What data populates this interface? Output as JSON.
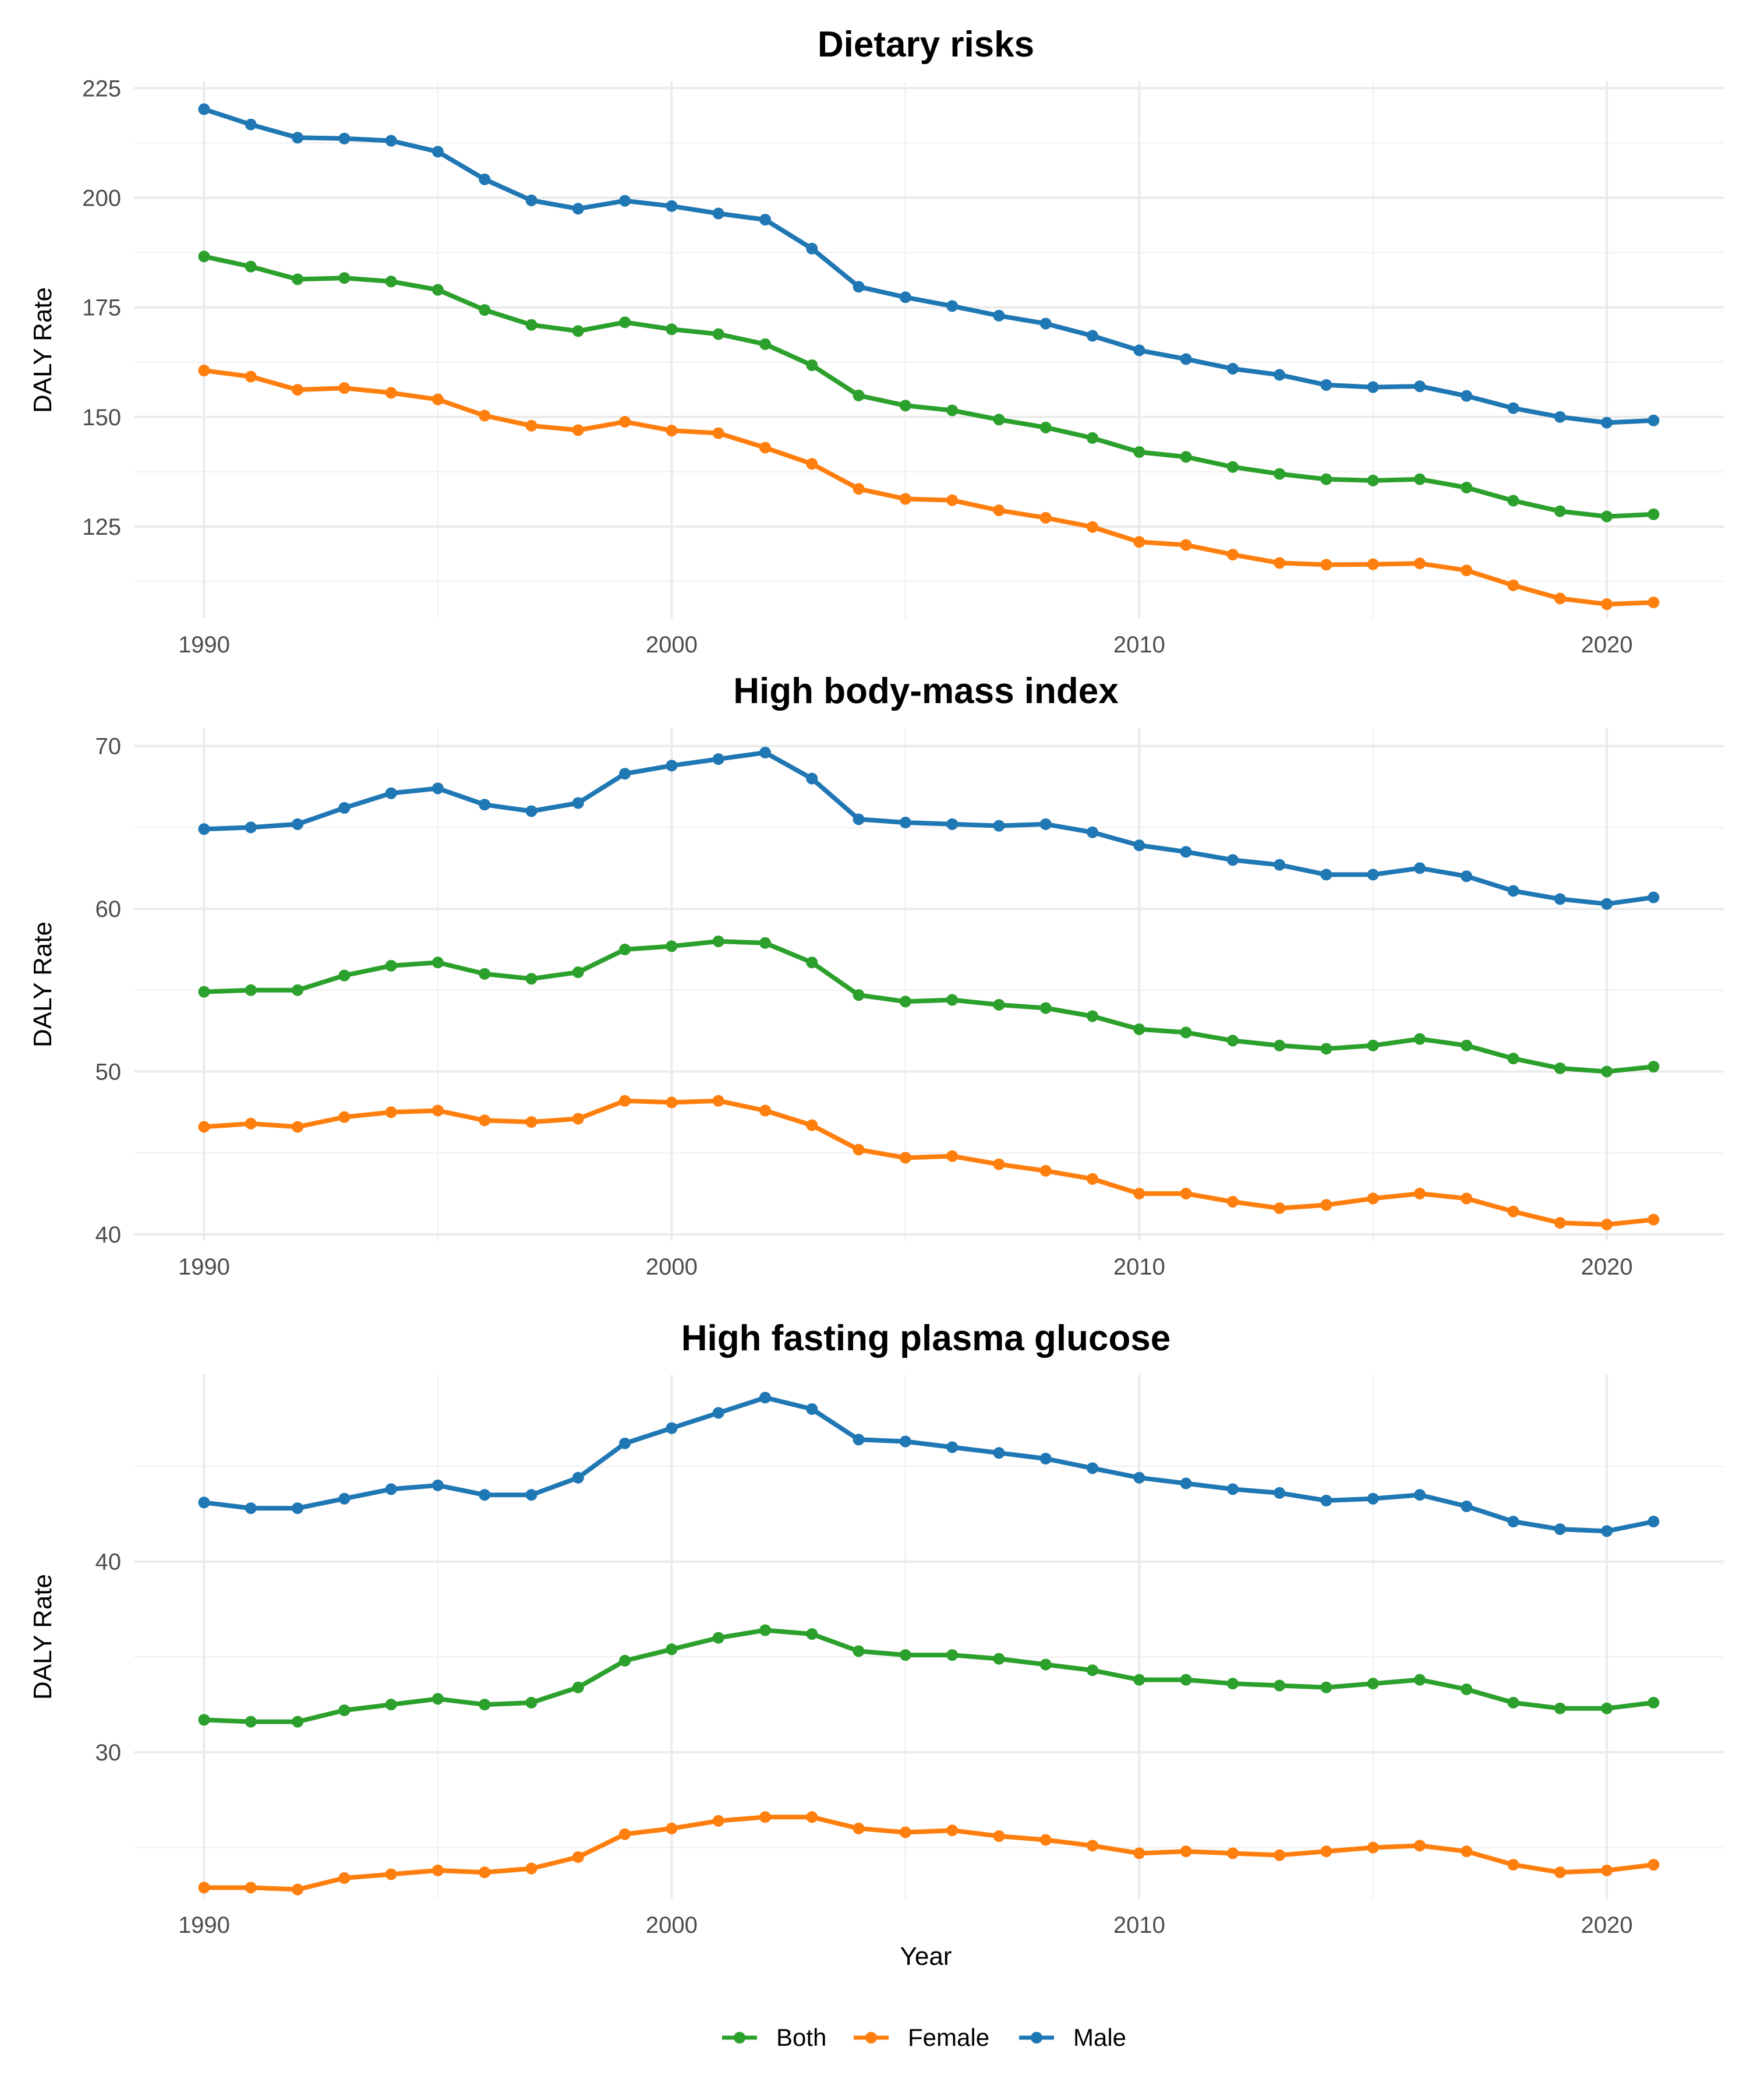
{
  "chart_data": [
    {
      "type": "line",
      "title": "Dietary risks",
      "xlabel": "",
      "ylabel": "DALY Rate",
      "xlim": [
        1988.5,
        2022.5
      ],
      "ylim": [
        104,
        226.5
      ],
      "xticks": [
        1990,
        2000,
        2010,
        2020
      ],
      "yticks": [
        125,
        150,
        175,
        200,
        225
      ],
      "x": [
        1990,
        1991,
        1992,
        1993,
        1994,
        1995,
        1996,
        1997,
        1998,
        1999,
        2000,
        2001,
        2002,
        2003,
        2004,
        2005,
        2006,
        2007,
        2008,
        2009,
        2010,
        2011,
        2012,
        2013,
        2014,
        2015,
        2016,
        2017,
        2018,
        2019,
        2020,
        2021
      ],
      "series": [
        {
          "name": "Male",
          "color": "#1f77b4",
          "values": [
            220.2,
            216.7,
            213.7,
            213.5,
            213.0,
            210.5,
            204.2,
            199.4,
            197.5,
            199.3,
            198.1,
            196.4,
            195.0,
            188.4,
            179.7,
            177.3,
            175.3,
            173.1,
            171.3,
            168.5,
            165.2,
            163.2,
            161.0,
            159.6,
            157.3,
            156.8,
            157.0,
            154.8,
            152.0,
            150.0,
            148.7,
            149.2
          ]
        },
        {
          "name": "Both",
          "color": "#2ca02c",
          "values": [
            186.6,
            184.3,
            181.4,
            181.7,
            180.9,
            179.0,
            174.4,
            171.0,
            169.6,
            171.6,
            170.0,
            168.9,
            166.6,
            161.8,
            154.9,
            152.6,
            151.5,
            149.4,
            147.6,
            145.2,
            142.0,
            140.9,
            138.6,
            137.0,
            135.8,
            135.5,
            135.8,
            133.9,
            130.9,
            128.5,
            127.3,
            127.8
          ]
        },
        {
          "name": "Female",
          "color": "#ff7f0e",
          "values": [
            160.6,
            159.2,
            156.2,
            156.6,
            155.5,
            154.0,
            150.3,
            148.0,
            147.0,
            148.9,
            146.9,
            146.3,
            143.0,
            139.3,
            133.6,
            131.3,
            131.0,
            128.7,
            127.0,
            124.9,
            121.5,
            120.8,
            118.6,
            116.7,
            116.3,
            116.4,
            116.6,
            115.0,
            111.6,
            108.6,
            107.3,
            107.7
          ]
        }
      ]
    },
    {
      "type": "line",
      "title": "High body-mass index",
      "xlabel": "",
      "ylabel": "DALY Rate",
      "xlim": [
        1988.5,
        2022.5
      ],
      "ylim": [
        39.6,
        71.1
      ],
      "xticks": [
        1990,
        2000,
        2010,
        2020
      ],
      "yticks": [
        40,
        50,
        60,
        70
      ],
      "x": [
        1990,
        1991,
        1992,
        1993,
        1994,
        1995,
        1996,
        1997,
        1998,
        1999,
        2000,
        2001,
        2002,
        2003,
        2004,
        2005,
        2006,
        2007,
        2008,
        2009,
        2010,
        2011,
        2012,
        2013,
        2014,
        2015,
        2016,
        2017,
        2018,
        2019,
        2020,
        2021
      ],
      "series": [
        {
          "name": "Male",
          "color": "#1f77b4",
          "values": [
            64.9,
            65.0,
            65.2,
            66.2,
            67.1,
            67.4,
            66.4,
            66.0,
            66.5,
            68.3,
            68.8,
            69.2,
            69.6,
            68.0,
            65.5,
            65.3,
            65.2,
            65.1,
            65.2,
            64.7,
            63.9,
            63.5,
            63.0,
            62.7,
            62.1,
            62.1,
            62.5,
            62.0,
            61.1,
            60.6,
            60.3,
            60.7
          ]
        },
        {
          "name": "Both",
          "color": "#2ca02c",
          "values": [
            54.9,
            55.0,
            55.0,
            55.9,
            56.5,
            56.7,
            56.0,
            55.7,
            56.1,
            57.5,
            57.7,
            58.0,
            57.9,
            56.7,
            54.7,
            54.3,
            54.4,
            54.1,
            53.9,
            53.4,
            52.6,
            52.4,
            51.9,
            51.6,
            51.4,
            51.6,
            52.0,
            51.6,
            50.8,
            50.2,
            50.0,
            50.3
          ]
        },
        {
          "name": "Female",
          "color": "#ff7f0e",
          "values": [
            46.6,
            46.8,
            46.6,
            47.2,
            47.5,
            47.6,
            47.0,
            46.9,
            47.1,
            48.2,
            48.1,
            48.2,
            47.6,
            46.7,
            45.2,
            44.7,
            44.8,
            44.3,
            43.9,
            43.4,
            42.5,
            42.5,
            42.0,
            41.6,
            41.8,
            42.2,
            42.5,
            42.2,
            41.4,
            40.7,
            40.6,
            40.9
          ]
        }
      ]
    },
    {
      "type": "line",
      "title": "High fasting plasma glucose",
      "xlabel": "Year",
      "ylabel": "DALY Rate",
      "xlim": [
        1988.5,
        2022.5
      ],
      "ylim": [
        22.3,
        49.8
      ],
      "xticks": [
        1990,
        2000,
        2010,
        2020
      ],
      "yticks": [
        30,
        40
      ],
      "x": [
        1990,
        1991,
        1992,
        1993,
        1994,
        1995,
        1996,
        1997,
        1998,
        1999,
        2000,
        2001,
        2002,
        2003,
        2004,
        2005,
        2006,
        2007,
        2008,
        2009,
        2010,
        2011,
        2012,
        2013,
        2014,
        2015,
        2016,
        2017,
        2018,
        2019,
        2020,
        2021
      ],
      "series": [
        {
          "name": "Male",
          "color": "#1f77b4",
          "values": [
            43.1,
            42.8,
            42.8,
            43.3,
            43.8,
            44.0,
            43.5,
            43.5,
            44.4,
            46.2,
            47.0,
            47.8,
            48.6,
            48.0,
            46.4,
            46.3,
            46.0,
            45.7,
            45.4,
            44.9,
            44.4,
            44.1,
            43.8,
            43.6,
            43.2,
            43.3,
            43.5,
            42.9,
            42.1,
            41.7,
            41.6,
            42.1
          ]
        },
        {
          "name": "Both",
          "color": "#2ca02c",
          "values": [
            31.7,
            31.6,
            31.6,
            32.2,
            32.5,
            32.8,
            32.5,
            32.6,
            33.4,
            34.8,
            35.4,
            36.0,
            36.4,
            36.2,
            35.3,
            35.1,
            35.1,
            34.9,
            34.6,
            34.3,
            33.8,
            33.8,
            33.6,
            33.5,
            33.4,
            33.6,
            33.8,
            33.3,
            32.6,
            32.3,
            32.3,
            32.6
          ]
        },
        {
          "name": "Female",
          "color": "#ff7f0e",
          "values": [
            22.9,
            22.9,
            22.8,
            23.4,
            23.6,
            23.8,
            23.7,
            23.9,
            24.5,
            25.7,
            26.0,
            26.4,
            26.6,
            26.6,
            26.0,
            25.8,
            25.9,
            25.6,
            25.4,
            25.1,
            24.7,
            24.8,
            24.7,
            24.6,
            24.8,
            25.0,
            25.1,
            24.8,
            24.1,
            23.7,
            23.8,
            24.1
          ]
        }
      ]
    }
  ],
  "legend": {
    "position": "bottom",
    "items": [
      {
        "label": "Both",
        "color": "#2ca02c"
      },
      {
        "label": "Female",
        "color": "#ff7f0e"
      },
      {
        "label": "Male",
        "color": "#1f77b4"
      }
    ]
  }
}
